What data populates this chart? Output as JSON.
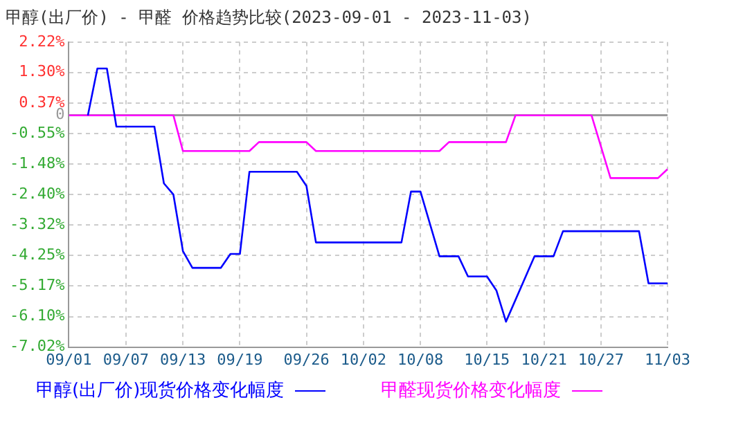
{
  "chart_data": {
    "type": "line",
    "title": "甲醇(出厂价) - 甲醛 价格趋势比较(2023-09-01 - 2023-11-03)",
    "series": [
      {
        "name": "甲醇(出厂价)现货价格变化幅度",
        "color": "#0000ff",
        "x": [
          "2023-09-03",
          "2023-09-04",
          "2023-09-05",
          "2023-09-06",
          "2023-09-10",
          "2023-09-11",
          "2023-09-12",
          "2023-09-13",
          "2023-09-14",
          "2023-09-17",
          "2023-09-18",
          "2023-09-19",
          "2023-09-20",
          "2023-09-25",
          "2023-09-26",
          "2023-09-27",
          "2023-10-06",
          "2023-10-07",
          "2023-10-08",
          "2023-10-10",
          "2023-10-12",
          "2023-10-13",
          "2023-10-15",
          "2023-10-16",
          "2023-10-17",
          "2023-10-20",
          "2023-10-22",
          "2023-10-23",
          "2023-10-31",
          "2023-11-01",
          "2023-11-03"
        ],
        "values": [
          0,
          1.42,
          1.42,
          -0.34,
          -0.34,
          -2.06,
          -2.4,
          -4.11,
          -4.62,
          -4.62,
          -4.2,
          -4.2,
          -1.71,
          -1.71,
          -2.14,
          -3.85,
          -3.85,
          -2.31,
          -2.31,
          -4.27,
          -4.27,
          -4.88,
          -4.88,
          -5.31,
          -6.25,
          -4.27,
          -4.27,
          -3.51,
          -3.51,
          -5.09,
          -5.09
        ]
      },
      {
        "name": "甲醛现货价格变化幅度",
        "color": "#ff00ff",
        "x": [
          "2023-09-01",
          "2023-09-12",
          "2023-09-13",
          "2023-09-20",
          "2023-09-21",
          "2023-09-26",
          "2023-09-27",
          "2023-10-10",
          "2023-10-11",
          "2023-10-17",
          "2023-10-18",
          "2023-10-26",
          "2023-10-28",
          "2023-11-02",
          "2023-11-03"
        ],
        "values": [
          0,
          0,
          -1.08,
          -1.08,
          -0.81,
          -0.81,
          -1.08,
          -1.08,
          -0.81,
          -0.81,
          0,
          0,
          -1.9,
          -1.9,
          -1.63
        ]
      }
    ],
    "xlim": [
      "2023-09-01",
      "2023-11-03"
    ],
    "xticks": [
      {
        "value": "2023-09-01",
        "label": "09/01"
      },
      {
        "value": "2023-09-07",
        "label": "09/07"
      },
      {
        "value": "2023-09-13",
        "label": "09/13"
      },
      {
        "value": "2023-09-19",
        "label": "09/19"
      },
      {
        "value": "2023-09-26",
        "label": "09/26"
      },
      {
        "value": "2023-10-02",
        "label": "10/02"
      },
      {
        "value": "2023-10-08",
        "label": "10/08"
      },
      {
        "value": "2023-10-15",
        "label": "10/15"
      },
      {
        "value": "2023-10-21",
        "label": "10/21"
      },
      {
        "value": "2023-10-27",
        "label": "10/27"
      },
      {
        "value": "2023-11-03",
        "label": "11/03"
      }
    ],
    "ylim": [
      -7.02,
      2.22
    ],
    "yticks": [
      {
        "value": 2.22,
        "label": "2.22%"
      },
      {
        "value": 1.3,
        "label": "1.30%"
      },
      {
        "value": 0.37,
        "label": "0.37%"
      },
      {
        "value": 0,
        "label": "0"
      },
      {
        "value": -0.55,
        "label": "-0.55%"
      },
      {
        "value": -1.48,
        "label": "-1.48%"
      },
      {
        "value": -2.4,
        "label": "-2.40%"
      },
      {
        "value": -3.32,
        "label": "-3.32%"
      },
      {
        "value": -4.25,
        "label": "-4.25%"
      },
      {
        "value": -5.17,
        "label": "-5.17%"
      },
      {
        "value": -6.1,
        "label": "-6.10%"
      },
      {
        "value": -7.02,
        "label": "-7.02%"
      }
    ],
    "grid": true,
    "legend": "bottom",
    "marker": "none",
    "line_style": "solid"
  }
}
